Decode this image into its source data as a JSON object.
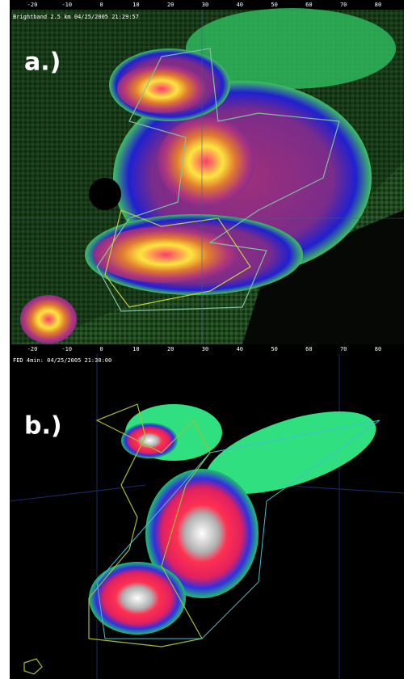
{
  "panel_a": {
    "header": "Brightband  2.5 km 04/25/2005 21:29:57",
    "label": "a.)",
    "x_axis_labels": [
      -20,
      -10,
      0,
      10,
      20,
      30,
      40,
      50,
      60,
      70,
      80
    ]
  },
  "panel_b": {
    "header": "FED 4min: 04/25/2005 21:30:00",
    "label": "b.)"
  }
}
